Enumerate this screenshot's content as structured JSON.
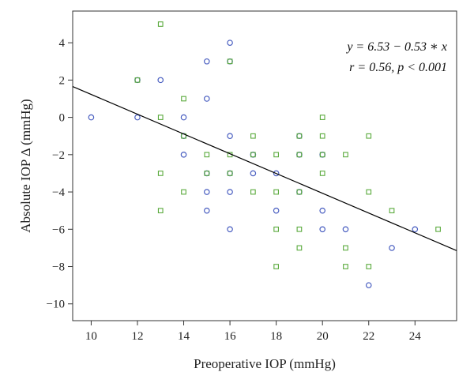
{
  "chart_data": {
    "type": "scatter",
    "xlabel": "Preoperative IOP (mmHg)",
    "ylabel": "Absolute IOP Δ (mmHg)",
    "xlim": [
      9.2,
      25.8
    ],
    "ylim": [
      -10.9,
      5.7
    ],
    "x_ticks": [
      10,
      12,
      14,
      16,
      18,
      20,
      22,
      24
    ],
    "y_ticks": [
      4,
      2,
      0,
      -2,
      -4,
      -6,
      -8,
      -10
    ],
    "grid": false,
    "regression": {
      "intercept": 6.53,
      "slope": -0.53,
      "color": "#000000"
    },
    "annotation": {
      "line1": "y = 6.53 − 0.53 ∗ x",
      "line2": "r = 0.56, p < 0.001"
    },
    "series": [
      {
        "marker": "circle",
        "color": "#4a5fc1",
        "points": [
          [
            10,
            0
          ],
          [
            12,
            2
          ],
          [
            12,
            0
          ],
          [
            13,
            2
          ],
          [
            14,
            0
          ],
          [
            14,
            -1
          ],
          [
            14,
            -2
          ],
          [
            15,
            3
          ],
          [
            15,
            1
          ],
          [
            15,
            -3
          ],
          [
            15,
            -4
          ],
          [
            15,
            -5
          ],
          [
            16,
            4
          ],
          [
            16,
            3
          ],
          [
            16,
            -1
          ],
          [
            16,
            -3
          ],
          [
            16,
            -4
          ],
          [
            16,
            -6
          ],
          [
            17,
            -2
          ],
          [
            17,
            -3
          ],
          [
            18,
            -3
          ],
          [
            18,
            -5
          ],
          [
            19,
            -1
          ],
          [
            19,
            -2
          ],
          [
            19,
            -4
          ],
          [
            20,
            -2
          ],
          [
            20,
            -5
          ],
          [
            20,
            -6
          ],
          [
            21,
            -6
          ],
          [
            22,
            -9
          ],
          [
            23,
            -7
          ],
          [
            24,
            -6
          ]
        ]
      },
      {
        "marker": "square",
        "color": "#5aaa3c",
        "points": [
          [
            12,
            2
          ],
          [
            13,
            5
          ],
          [
            13,
            0
          ],
          [
            13,
            -3
          ],
          [
            13,
            -5
          ],
          [
            14,
            1
          ],
          [
            14,
            -1
          ],
          [
            14,
            -4
          ],
          [
            15,
            -2
          ],
          [
            15,
            -3
          ],
          [
            16,
            3
          ],
          [
            16,
            -2
          ],
          [
            16,
            -3
          ],
          [
            17,
            -1
          ],
          [
            17,
            -2
          ],
          [
            17,
            -4
          ],
          [
            18,
            -2
          ],
          [
            18,
            -4
          ],
          [
            18,
            -6
          ],
          [
            18,
            -8
          ],
          [
            19,
            -1
          ],
          [
            19,
            -2
          ],
          [
            19,
            -4
          ],
          [
            19,
            -6
          ],
          [
            19,
            -7
          ],
          [
            20,
            0
          ],
          [
            20,
            -1
          ],
          [
            20,
            -2
          ],
          [
            20,
            -3
          ],
          [
            21,
            -2
          ],
          [
            21,
            -7
          ],
          [
            21,
            -8
          ],
          [
            22,
            -1
          ],
          [
            22,
            -4
          ],
          [
            22,
            -8
          ],
          [
            23,
            -5
          ],
          [
            25,
            -6
          ]
        ]
      }
    ]
  }
}
